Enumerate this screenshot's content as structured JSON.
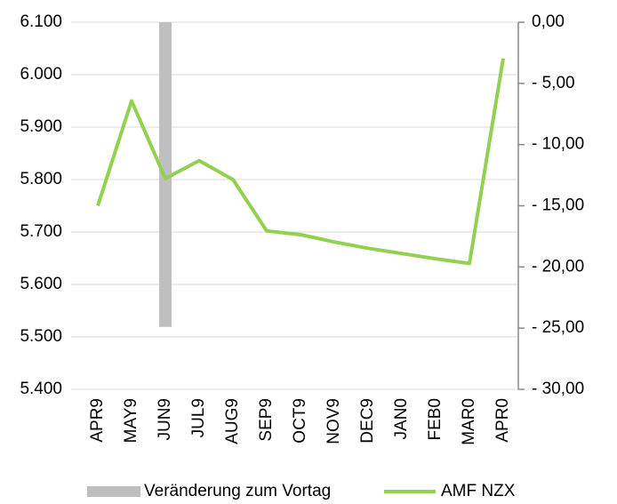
{
  "chart_data": {
    "type": "combo",
    "categories": [
      "APR9",
      "MAY9",
      "JUN9",
      "JUL9",
      "AUG9",
      "SEP9",
      "OCT9",
      "NOV9",
      "DEC9",
      "JAN0",
      "FEB0",
      "MAR0",
      "APR0"
    ],
    "series": [
      {
        "name": "Veränderung zum Vortag",
        "type": "bar",
        "axis": "y2",
        "color": "#bfbfbf",
        "values": [
          null,
          null,
          -24.9,
          null,
          null,
          null,
          null,
          null,
          null,
          null,
          null,
          null,
          null
        ]
      },
      {
        "name": "AMF NZX",
        "type": "line",
        "axis": "y",
        "color": "#92d050",
        "values": [
          5750,
          5950,
          5802,
          5836,
          5800,
          5702,
          5695,
          5681,
          5669,
          5659,
          5649,
          5640,
          6031
        ]
      }
    ],
    "ylim": [
      5400,
      6100
    ],
    "yticks": [
      {
        "value": 5400,
        "label": "5.400"
      },
      {
        "value": 5500,
        "label": "5.500"
      },
      {
        "value": 5600,
        "label": "5.600"
      },
      {
        "value": 5700,
        "label": "5.700"
      },
      {
        "value": 5800,
        "label": "5.800"
      },
      {
        "value": 5900,
        "label": "5.900"
      },
      {
        "value": 6000,
        "label": "6.000"
      },
      {
        "value": 6100,
        "label": "6.100"
      }
    ],
    "y2lim": [
      -30,
      0
    ],
    "y2ticks": [
      {
        "value": 0,
        "label": "0,00"
      },
      {
        "value": -5,
        "label": "- 5,00"
      },
      {
        "value": -10,
        "label": "- 10,00"
      },
      {
        "value": -15,
        "label": "- 15,00"
      },
      {
        "value": -20,
        "label": "- 20,00"
      },
      {
        "value": -25,
        "label": "- 25,00"
      },
      {
        "value": -30,
        "label": "- 30,00"
      }
    ],
    "negative_tick_color": "#ff0000",
    "grid": true,
    "legend": "bottom"
  }
}
